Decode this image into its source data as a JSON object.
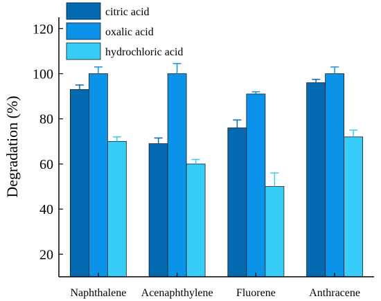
{
  "chart_data": {
    "type": "bar",
    "title": "",
    "xlabel": "",
    "ylabel": "Degradation (%)",
    "ylim": [
      10,
      125
    ],
    "yticks": [
      20,
      40,
      60,
      80,
      100,
      120
    ],
    "grid": false,
    "legend_position": "top-left",
    "categories": [
      "Naphthalene",
      "Acenaphthylene",
      "Fluorene",
      "Anthracene"
    ],
    "series": [
      {
        "name": "citric acid",
        "color": "#0369b0",
        "values": [
          93,
          69,
          76,
          96
        ],
        "errors": [
          2,
          2.5,
          3.5,
          1.5
        ]
      },
      {
        "name": "oxalic acid",
        "color": "#0a93e8",
        "values": [
          100,
          100,
          91,
          100
        ],
        "errors": [
          3,
          4.5,
          1,
          3
        ]
      },
      {
        "name": "hydrochloric acid",
        "color": "#38ccf9",
        "values": [
          70,
          60,
          50,
          72
        ],
        "errors": [
          2,
          2,
          6,
          3
        ]
      }
    ]
  }
}
